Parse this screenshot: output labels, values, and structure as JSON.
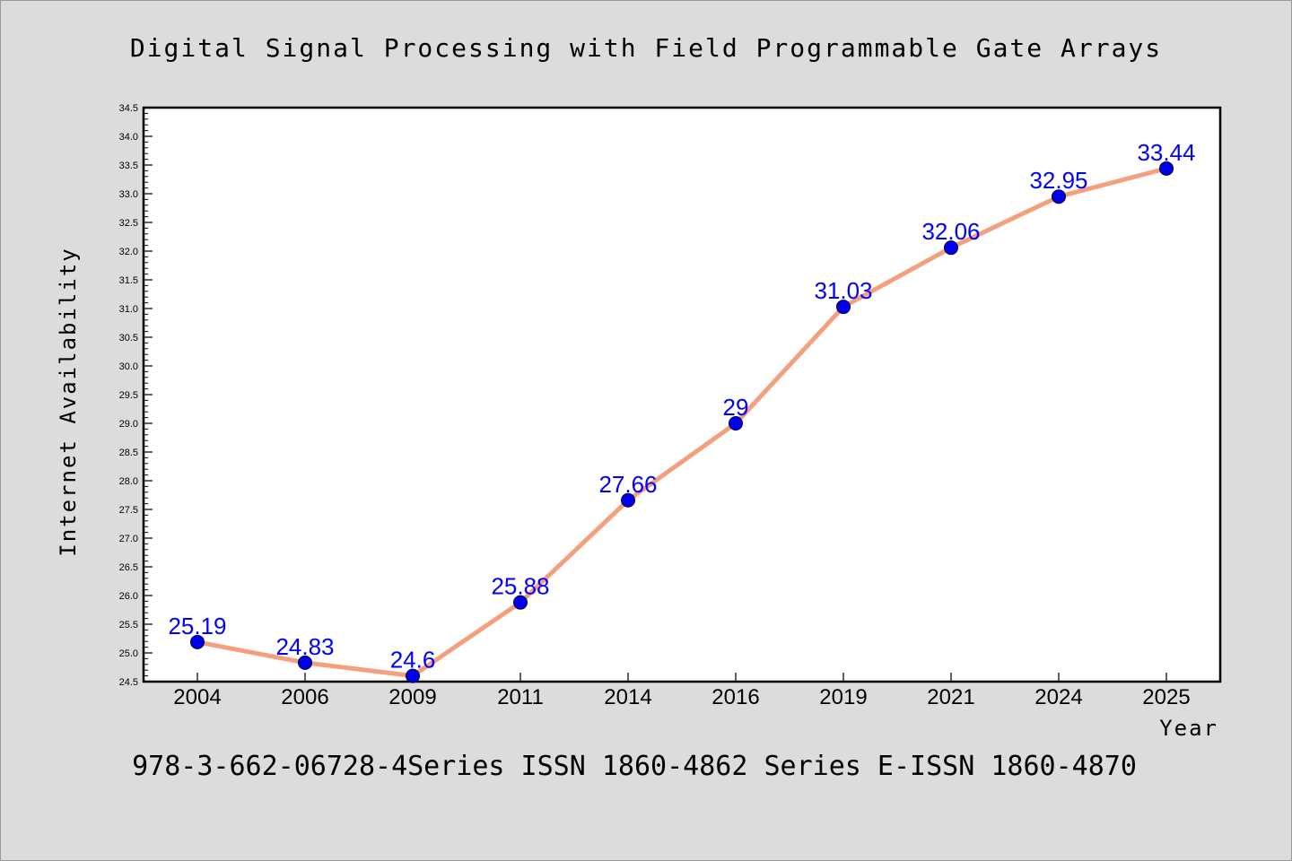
{
  "chart_data": {
    "type": "line",
    "title": "Digital Signal Processing with Field Programmable Gate Arrays",
    "subtitle": "978-3-662-06728-4Series ISSN 1860-4862 Series E-ISSN 1860-4870",
    "xlabel": "Year",
    "ylabel": "Internet Availability",
    "categories": [
      "2004",
      "2006",
      "2009",
      "2011",
      "2014",
      "2016",
      "2019",
      "2021",
      "2024",
      "2025"
    ],
    "values": [
      25.19,
      24.83,
      24.6,
      25.88,
      27.66,
      29,
      31.03,
      32.06,
      32.95,
      33.44
    ],
    "value_labels": [
      "25.19",
      "24.83",
      "24.6",
      "25.88",
      "27.66",
      "29",
      "31.03",
      "32.06",
      "32.95",
      "33.44"
    ],
    "ylim": [
      24.5,
      34.5
    ],
    "yticks": [
      "24.5",
      "25.0",
      "25.5",
      "26.0",
      "26.5",
      "27.0",
      "27.5",
      "28.0",
      "28.5",
      "29.0",
      "29.5",
      "30.0",
      "30.5",
      "31.0",
      "31.5",
      "32.0",
      "32.5",
      "33.0",
      "33.5",
      "34.0",
      "34.5"
    ],
    "grid": false,
    "line_color": "#f4a07e",
    "marker_color": "#0000ee",
    "label_color": "#0000ff",
    "background": "#dcdcdc",
    "plot_background": "#ffffff"
  }
}
